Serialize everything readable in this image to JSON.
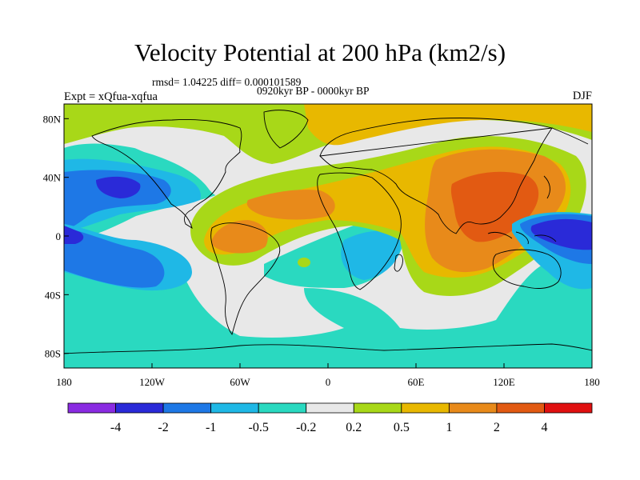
{
  "title": "Velocity Potential at 200 hPa (km2/s)",
  "stats_text": "rmsd= 1.04225 diff= 0.000101589",
  "experiment_text": "Expt = xQfua-xqfua",
  "period_text": "0920kyr BP - 0000kyr BP",
  "season_text": "DJF",
  "map": {
    "projection": "cylindrical-equidistant",
    "lon_range": [
      -180,
      180
    ],
    "lat_range": [
      -90,
      90
    ],
    "x_ticks": [
      {
        "lon": -180,
        "label": "180"
      },
      {
        "lon": -120,
        "label": "120W"
      },
      {
        "lon": -60,
        "label": "60W"
      },
      {
        "lon": 0,
        "label": "0"
      },
      {
        "lon": 60,
        "label": "60E"
      },
      {
        "lon": 120,
        "label": "120E"
      },
      {
        "lon": 180,
        "label": "180"
      }
    ],
    "y_ticks": [
      {
        "lat": 80,
        "label": "80N"
      },
      {
        "lat": 40,
        "label": "40N"
      },
      {
        "lat": 0,
        "label": "0"
      },
      {
        "lat": -40,
        "label": "40S"
      },
      {
        "lat": -80,
        "label": "80S"
      }
    ],
    "coastline_color": "#000000",
    "field_description_regions": [
      {
        "id": "eq-indian-west-pacific",
        "value_class": 2,
        "center": [
          110,
          10
        ]
      },
      {
        "id": "west-pacific-maritime",
        "value_class": -2,
        "center": [
          160,
          0
        ]
      },
      {
        "id": "north-pacific",
        "value_class": -2,
        "center": [
          -140,
          25
        ]
      },
      {
        "id": "tropical-atlantic-south-america",
        "value_class": 1,
        "center": [
          -50,
          5
        ]
      },
      {
        "id": "africa-arabia",
        "value_class": 1,
        "center": [
          20,
          25
        ]
      }
    ]
  },
  "colorbar": {
    "boundaries": [
      "-4",
      "-2",
      "-1",
      "-0.5",
      "-0.2",
      "0.2",
      "0.5",
      "1",
      "2",
      "4"
    ],
    "colors": [
      "#8a2be2",
      "#2a2ad8",
      "#1e78e6",
      "#1fb8e6",
      "#2ad9c0",
      "#e8e8e8",
      "#a8d818",
      "#e8b800",
      "#e88a1a",
      "#e25a12",
      "#e01010"
    ]
  }
}
